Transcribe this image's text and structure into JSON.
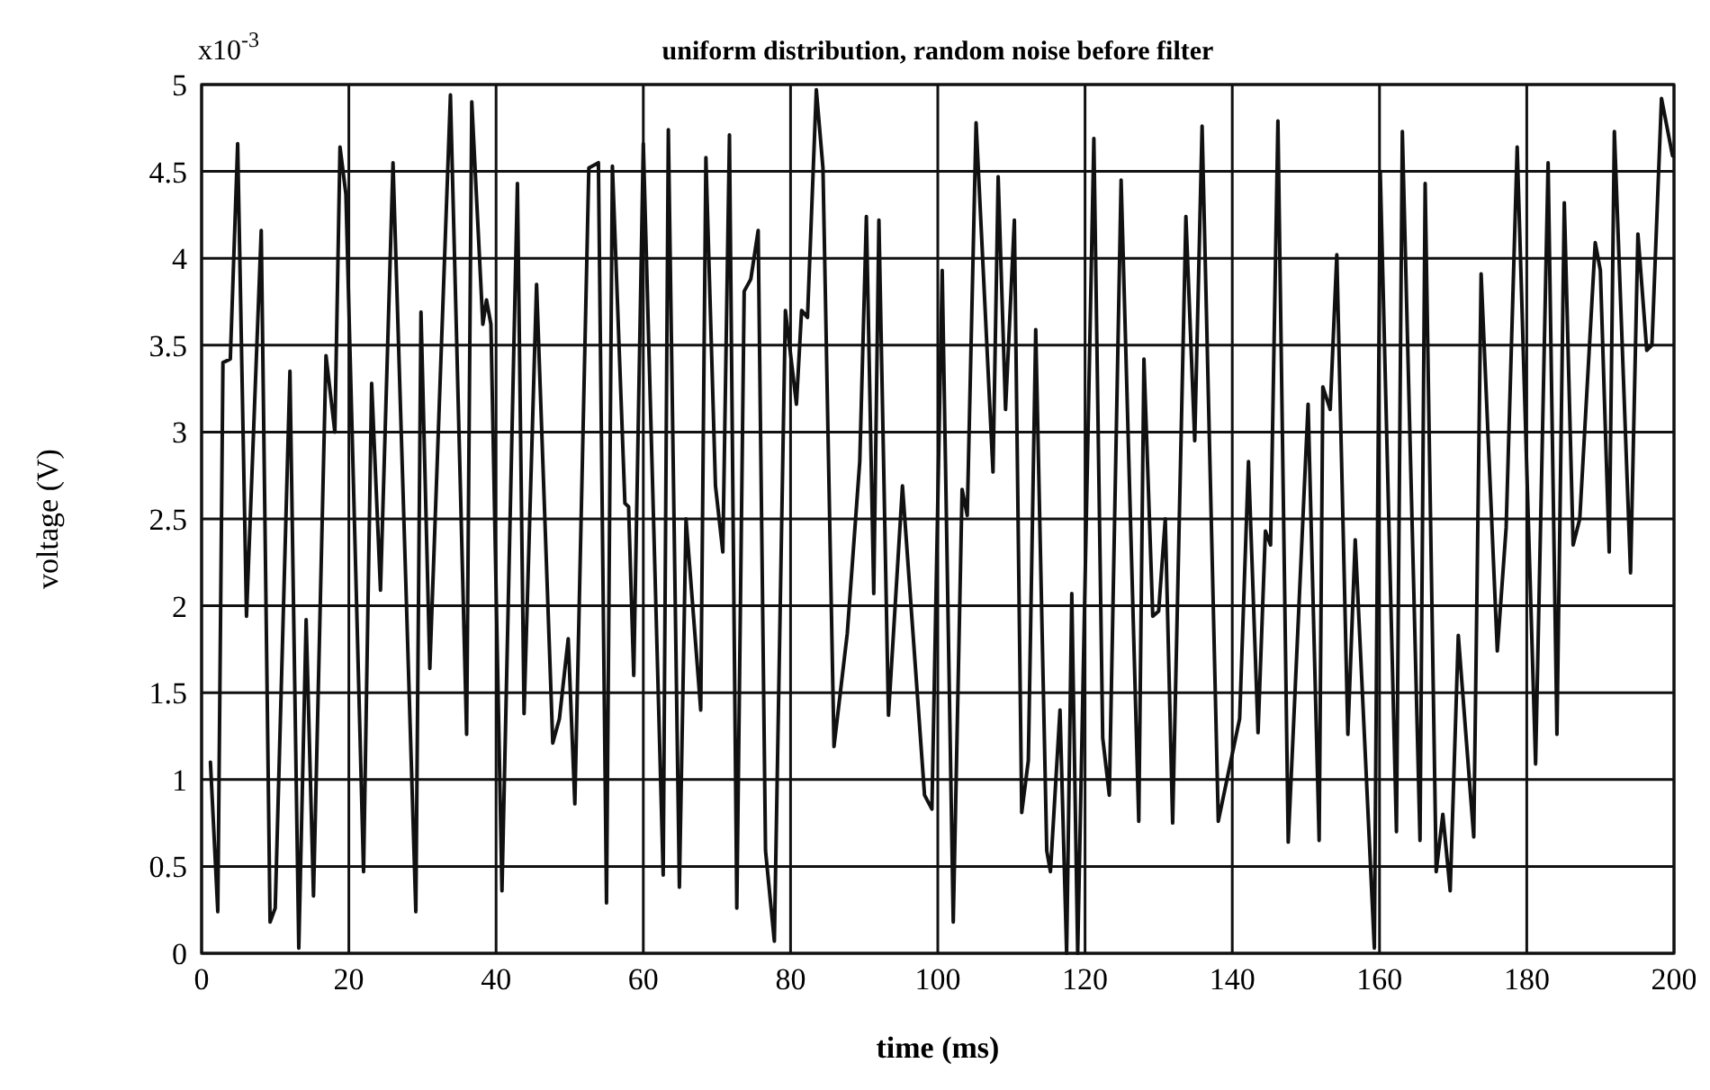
{
  "chart_data": {
    "type": "line",
    "title": "uniform distribution, random noise before filter",
    "xlabel": "time (ms)",
    "ylabel": "voltage (V)",
    "annotations": [
      "x10$^{-3}$"
    ],
    "x": [
      1.2,
      2.2,
      2.9,
      3.9,
      4.9,
      6.1,
      8.1,
      9.3,
      10.0,
      12.0,
      13.2,
      14.2,
      15.2,
      16.9,
      18.1,
      18.8,
      19.6,
      22.0,
      23.1,
      24.3,
      26.0,
      29.1,
      29.8,
      31.0,
      33.8,
      36.0,
      36.7,
      38.2,
      38.7,
      39.3,
      40.8,
      42.9,
      43.8,
      45.5,
      47.7,
      48.6,
      49.8,
      50.7,
      52.6,
      53.9,
      55.0,
      55.8,
      57.5,
      58.0,
      58.7,
      60.0,
      62.7,
      63.4,
      64.9,
      65.8,
      67.8,
      68.5,
      69.8,
      70.8,
      71.7,
      72.7,
      73.7,
      74.6,
      75.6,
      76.6,
      77.8,
      79.3,
      80.8,
      81.5,
      82.3,
      83.5,
      84.4,
      85.9,
      87.7,
      89.4,
      90.3,
      91.3,
      92.0,
      93.3,
      95.2,
      98.2,
      99.2,
      100.6,
      102.1,
      103.3,
      104.0,
      105.2,
      107.5,
      108.2,
      109.2,
      110.4,
      111.4,
      112.3,
      113.3,
      114.8,
      115.3,
      116.6,
      117.5,
      118.2,
      119.0,
      121.2,
      122.4,
      123.3,
      124.9,
      127.3,
      128.0,
      129.2,
      130.0,
      130.9,
      131.9,
      133.7,
      134.9,
      135.9,
      138.1,
      141.0,
      142.2,
      143.5,
      144.5,
      145.2,
      146.2,
      147.6,
      150.3,
      151.8,
      152.3,
      153.3,
      154.2,
      155.7,
      156.7,
      159.3,
      160.1,
      162.3,
      163.1,
      165.5,
      166.2,
      167.7,
      168.6,
      169.6,
      170.7,
      172.8,
      173.8,
      176.0,
      177.2,
      178.7,
      181.2,
      182.9,
      184.1,
      185.1,
      186.3,
      187.2,
      189.3,
      190.0,
      191.2,
      191.9,
      194.1,
      195.1,
      196.3,
      197.0,
      198.3,
      199.8
    ],
    "series": [
      {
        "color": "#111111",
        "values": [
          1.1,
          0.24,
          3.4,
          3.42,
          4.66,
          1.94,
          4.16,
          0.18,
          0.26,
          3.35,
          0.03,
          1.92,
          0.33,
          3.44,
          3.0,
          4.64,
          4.37,
          0.47,
          3.28,
          2.09,
          4.55,
          0.24,
          3.69,
          1.64,
          4.94,
          1.26,
          4.9,
          3.62,
          3.76,
          3.62,
          0.36,
          4.43,
          1.38,
          3.85,
          1.21,
          1.35,
          1.81,
          0.86,
          4.52,
          4.55,
          0.29,
          4.53,
          2.59,
          2.57,
          1.6,
          4.66,
          0.45,
          4.74,
          0.38,
          2.5,
          1.4,
          4.58,
          2.69,
          2.31,
          4.71,
          0.26,
          3.81,
          3.88,
          4.16,
          0.59,
          0.07,
          3.7,
          3.16,
          3.7,
          3.66,
          4.97,
          4.52,
          1.19,
          1.84,
          2.83,
          4.24,
          2.07,
          4.22,
          1.37,
          2.69,
          0.91,
          0.83,
          3.93,
          0.18,
          2.67,
          2.52,
          4.78,
          2.77,
          4.47,
          3.13,
          4.22,
          0.81,
          1.11,
          3.59,
          0.59,
          0.47,
          1.4,
          0.0,
          2.07,
          0.0,
          4.69,
          1.24,
          0.91,
          4.45,
          0.76,
          3.42,
          1.94,
          1.97,
          2.5,
          0.75,
          4.24,
          2.95,
          4.76,
          0.76,
          1.35,
          2.83,
          1.27,
          2.43,
          2.35,
          4.79,
          0.64,
          3.16,
          0.65,
          3.26,
          3.13,
          4.02,
          1.26,
          2.38,
          0.03,
          4.5,
          0.7,
          4.73,
          0.65,
          4.43,
          0.47,
          0.8,
          0.36,
          1.83,
          0.67,
          3.91,
          1.74,
          2.45,
          4.64,
          1.09,
          4.55,
          1.26,
          4.32,
          2.35,
          2.5,
          4.09,
          3.93,
          2.31,
          4.73,
          2.19,
          4.14,
          3.47,
          3.5,
          4.92,
          4.59
        ]
      }
    ],
    "xlim": [
      0,
      200
    ],
    "xticks": [
      0,
      20,
      40,
      60,
      80,
      100,
      120,
      140,
      160,
      180,
      200
    ],
    "ylim": [
      0,
      5
    ],
    "yticks": [
      0,
      0.5,
      1,
      1.5,
      2,
      2.5,
      3,
      3.5,
      4,
      4.5,
      5
    ],
    "grid": true,
    "line_style": "solid",
    "marker": "none"
  }
}
